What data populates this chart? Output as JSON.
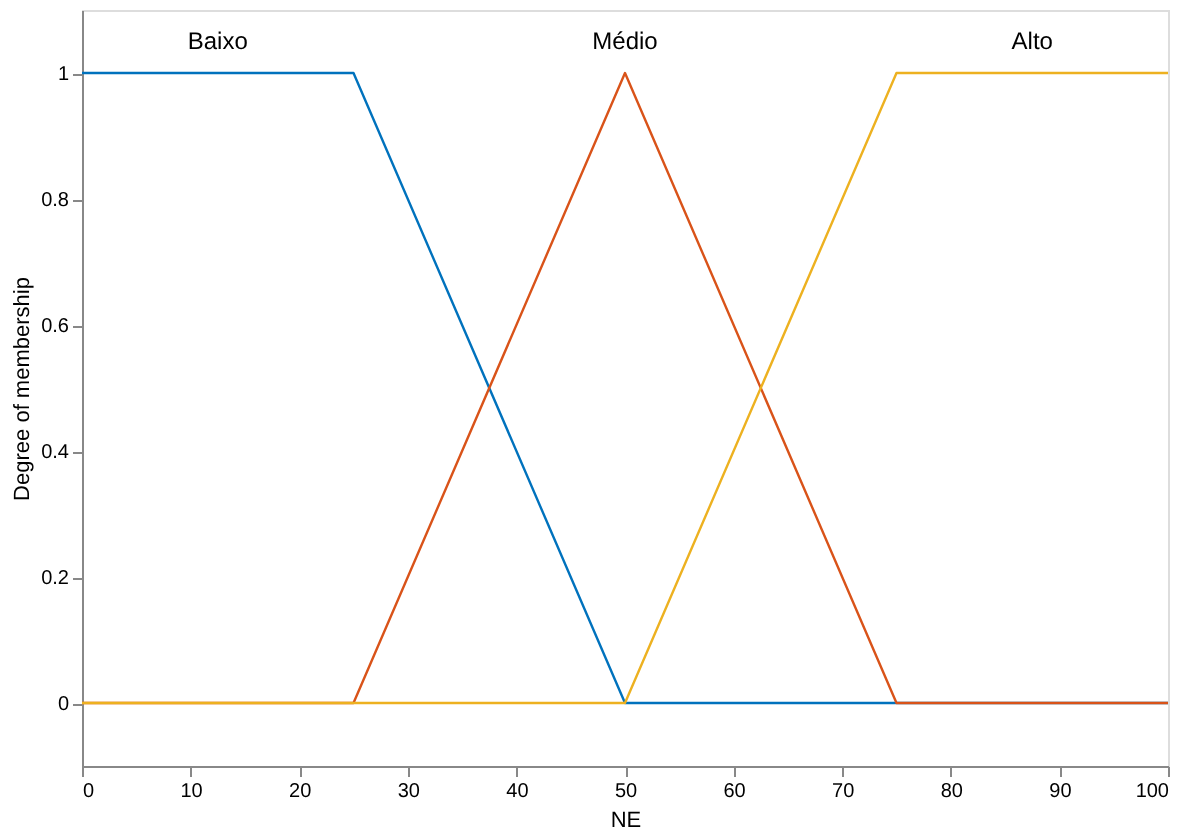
{
  "chart_data": {
    "type": "line",
    "xlabel": "NE",
    "ylabel": "Degree of membership",
    "xlim": [
      0,
      100
    ],
    "ylim": [
      -0.1,
      1.1
    ],
    "xticks": [
      0,
      10,
      20,
      30,
      40,
      50,
      60,
      70,
      80,
      90,
      100
    ],
    "yticks": [
      0,
      0.2,
      0.4,
      0.6,
      0.8,
      1
    ],
    "grid": false,
    "legend": false,
    "marker": "none",
    "line_style": "solid",
    "series": [
      {
        "name": "Baixo",
        "color": "#0072bd",
        "x": [
          0,
          25,
          50,
          100
        ],
        "values": [
          1,
          1,
          0,
          0
        ]
      },
      {
        "name": "Médio",
        "color": "#d95319",
        "x": [
          0,
          25,
          50,
          75,
          100
        ],
        "values": [
          0,
          0,
          1,
          0,
          0
        ]
      },
      {
        "name": "Alto",
        "color": "#edb120",
        "x": [
          0,
          50,
          75,
          100
        ],
        "values": [
          0,
          0,
          1,
          1
        ]
      }
    ]
  }
}
